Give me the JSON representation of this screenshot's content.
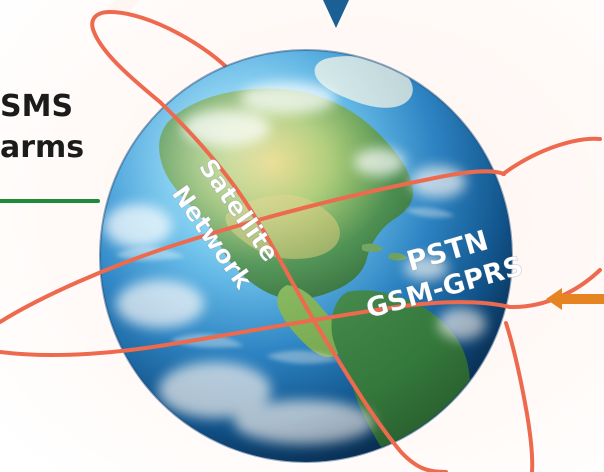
{
  "left_label": {
    "line1": "SMS",
    "line2": "arms"
  },
  "globe_labels": {
    "satellite_line1": "Satellite",
    "satellite_line2": "Network",
    "pstn": "PSTN",
    "gsm": "GSM-GPRS"
  },
  "colors": {
    "orbit": "#ee6a4e",
    "left_line": "#1f8a3a",
    "right_arrow": "#e68422",
    "top_arrow": "#1b5f95",
    "label_text": "#1b1b1b",
    "globe_text": "#ffffff"
  },
  "icons": {
    "top_arrow": "down-arrow-icon",
    "right_arrow": "left-arrow-icon"
  }
}
